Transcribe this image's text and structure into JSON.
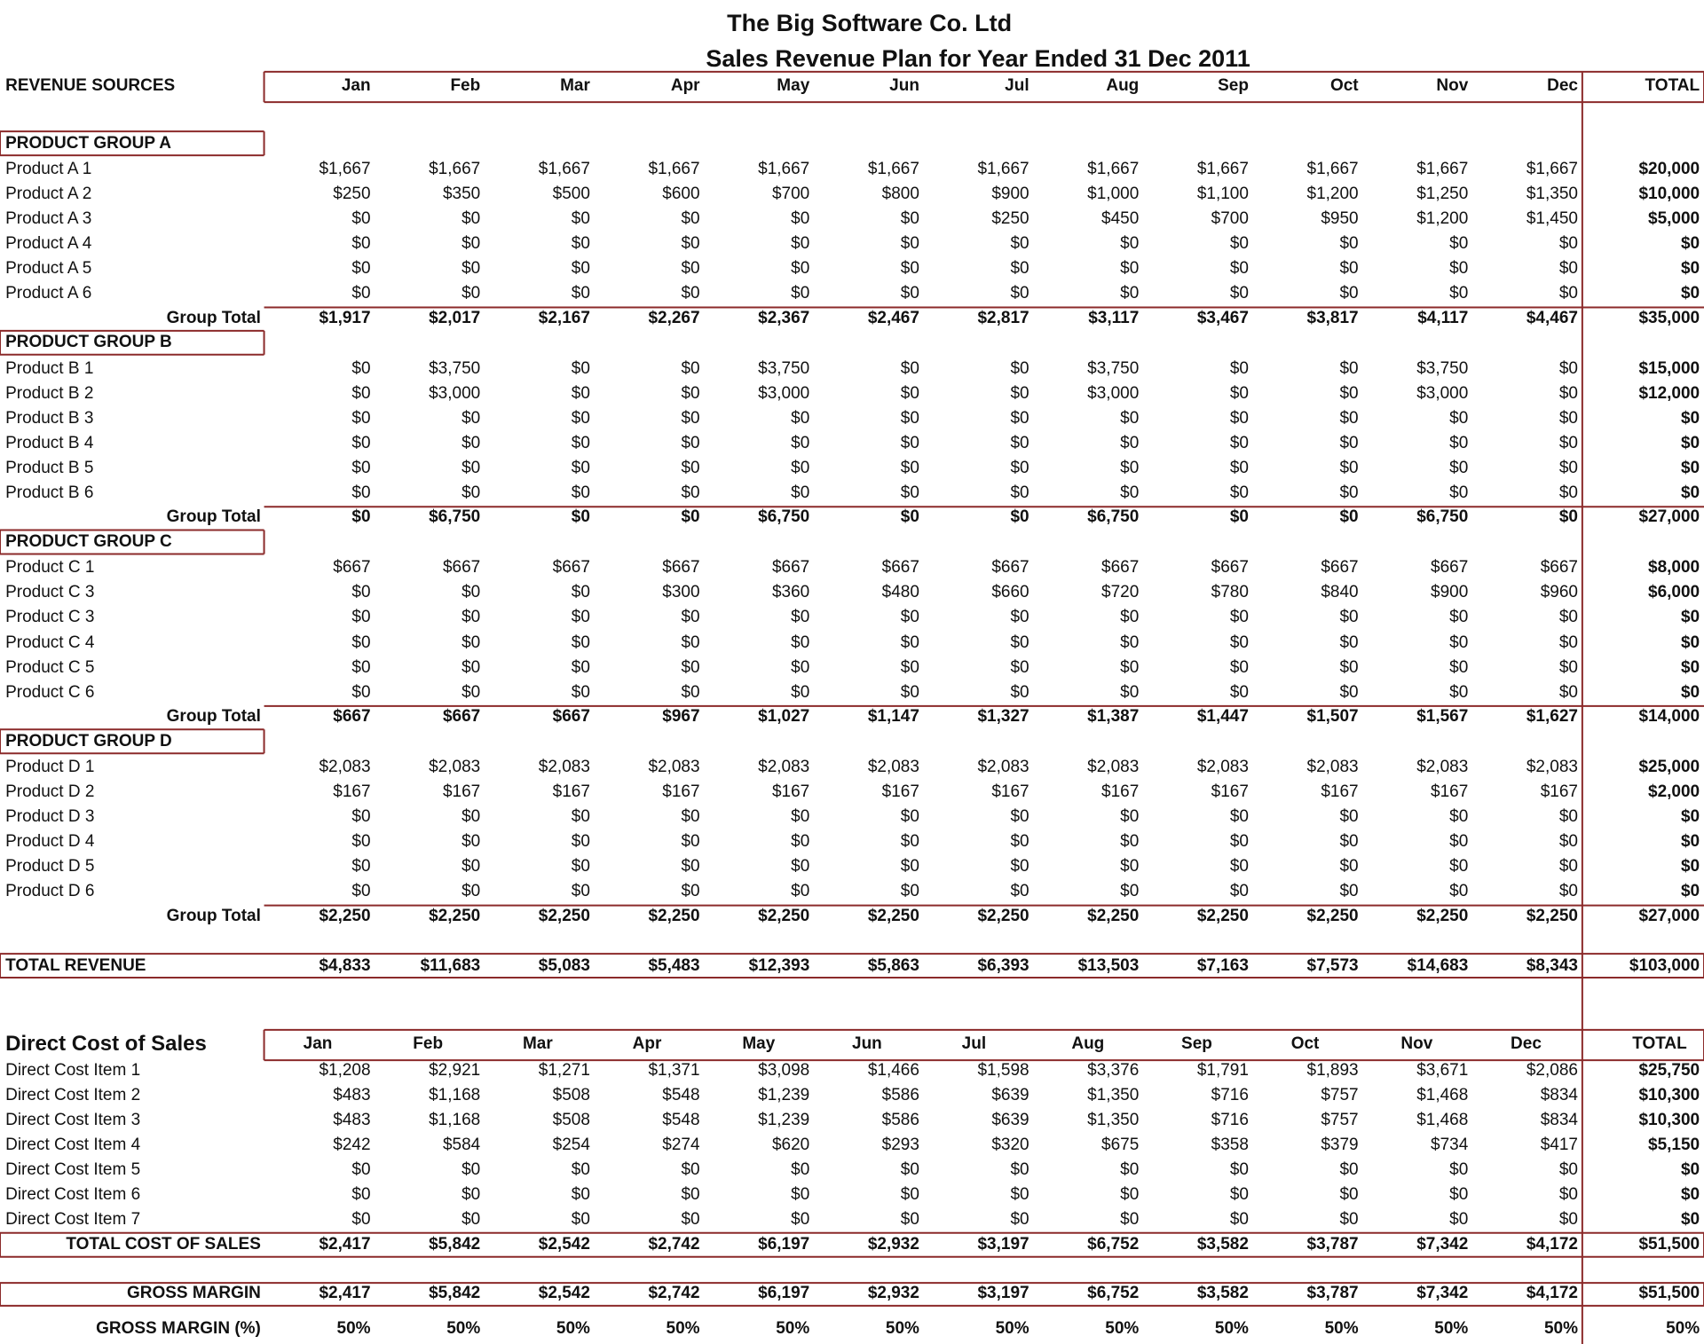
{
  "title": "The Big Software Co. Ltd",
  "subtitle": "Sales Revenue Plan for Year Ended 31 Dec 2011",
  "revenue": {
    "header": [
      "REVENUE SOURCES",
      "Jan",
      "Feb",
      "Mar",
      "Apr",
      "May",
      "Jun",
      "Jul",
      "Aug",
      "Sep",
      "Oct",
      "Nov",
      "Dec",
      "TOTAL"
    ],
    "groups": [
      {
        "name": "PRODUCT GROUP A",
        "rows": [
          [
            "Product A 1",
            "$1,667",
            "$1,667",
            "$1,667",
            "$1,667",
            "$1,667",
            "$1,667",
            "$1,667",
            "$1,667",
            "$1,667",
            "$1,667",
            "$1,667",
            "$1,667",
            "$20,000"
          ],
          [
            "Product A 2",
            "$250",
            "$350",
            "$500",
            "$600",
            "$700",
            "$800",
            "$900",
            "$1,000",
            "$1,100",
            "$1,200",
            "$1,250",
            "$1,350",
            "$10,000"
          ],
          [
            "Product A 3",
            "$0",
            "$0",
            "$0",
            "$0",
            "$0",
            "$0",
            "$250",
            "$450",
            "$700",
            "$950",
            "$1,200",
            "$1,450",
            "$5,000"
          ],
          [
            "Product A 4",
            "$0",
            "$0",
            "$0",
            "$0",
            "$0",
            "$0",
            "$0",
            "$0",
            "$0",
            "$0",
            "$0",
            "$0",
            "$0"
          ],
          [
            "Product A 5",
            "$0",
            "$0",
            "$0",
            "$0",
            "$0",
            "$0",
            "$0",
            "$0",
            "$0",
            "$0",
            "$0",
            "$0",
            "$0"
          ],
          [
            "Product A 6",
            "$0",
            "$0",
            "$0",
            "$0",
            "$0",
            "$0",
            "$0",
            "$0",
            "$0",
            "$0",
            "$0",
            "$0",
            "$0"
          ]
        ],
        "total": [
          "Group Total",
          "$1,917",
          "$2,017",
          "$2,167",
          "$2,267",
          "$2,367",
          "$2,467",
          "$2,817",
          "$3,117",
          "$3,467",
          "$3,817",
          "$4,117",
          "$4,467",
          "$35,000"
        ]
      },
      {
        "name": "PRODUCT GROUP B",
        "rows": [
          [
            "Product B 1",
            "$0",
            "$3,750",
            "$0",
            "$0",
            "$3,750",
            "$0",
            "$0",
            "$3,750",
            "$0",
            "$0",
            "$3,750",
            "$0",
            "$15,000"
          ],
          [
            "Product B 2",
            "$0",
            "$3,000",
            "$0",
            "$0",
            "$3,000",
            "$0",
            "$0",
            "$3,000",
            "$0",
            "$0",
            "$3,000",
            "$0",
            "$12,000"
          ],
          [
            "Product B 3",
            "$0",
            "$0",
            "$0",
            "$0",
            "$0",
            "$0",
            "$0",
            "$0",
            "$0",
            "$0",
            "$0",
            "$0",
            "$0"
          ],
          [
            "Product B 4",
            "$0",
            "$0",
            "$0",
            "$0",
            "$0",
            "$0",
            "$0",
            "$0",
            "$0",
            "$0",
            "$0",
            "$0",
            "$0"
          ],
          [
            "Product B 5",
            "$0",
            "$0",
            "$0",
            "$0",
            "$0",
            "$0",
            "$0",
            "$0",
            "$0",
            "$0",
            "$0",
            "$0",
            "$0"
          ],
          [
            "Product B 6",
            "$0",
            "$0",
            "$0",
            "$0",
            "$0",
            "$0",
            "$0",
            "$0",
            "$0",
            "$0",
            "$0",
            "$0",
            "$0"
          ]
        ],
        "total": [
          "Group Total",
          "$0",
          "$6,750",
          "$0",
          "$0",
          "$6,750",
          "$0",
          "$0",
          "$6,750",
          "$0",
          "$0",
          "$6,750",
          "$0",
          "$27,000"
        ]
      },
      {
        "name": "PRODUCT GROUP C",
        "rows": [
          [
            "Product C 1",
            "$667",
            "$667",
            "$667",
            "$667",
            "$667",
            "$667",
            "$667",
            "$667",
            "$667",
            "$667",
            "$667",
            "$667",
            "$8,000"
          ],
          [
            "Product C 3",
            "$0",
            "$0",
            "$0",
            "$300",
            "$360",
            "$480",
            "$660",
            "$720",
            "$780",
            "$840",
            "$900",
            "$960",
            "$6,000"
          ],
          [
            "Product C 3",
            "$0",
            "$0",
            "$0",
            "$0",
            "$0",
            "$0",
            "$0",
            "$0",
            "$0",
            "$0",
            "$0",
            "$0",
            "$0"
          ],
          [
            "Product C 4",
            "$0",
            "$0",
            "$0",
            "$0",
            "$0",
            "$0",
            "$0",
            "$0",
            "$0",
            "$0",
            "$0",
            "$0",
            "$0"
          ],
          [
            "Product C 5",
            "$0",
            "$0",
            "$0",
            "$0",
            "$0",
            "$0",
            "$0",
            "$0",
            "$0",
            "$0",
            "$0",
            "$0",
            "$0"
          ],
          [
            "Product C 6",
            "$0",
            "$0",
            "$0",
            "$0",
            "$0",
            "$0",
            "$0",
            "$0",
            "$0",
            "$0",
            "$0",
            "$0",
            "$0"
          ]
        ],
        "total": [
          "Group Total",
          "$667",
          "$667",
          "$667",
          "$967",
          "$1,027",
          "$1,147",
          "$1,327",
          "$1,387",
          "$1,447",
          "$1,507",
          "$1,567",
          "$1,627",
          "$14,000"
        ]
      },
      {
        "name": "PRODUCT GROUP D",
        "rows": [
          [
            "Product D 1",
            "$2,083",
            "$2,083",
            "$2,083",
            "$2,083",
            "$2,083",
            "$2,083",
            "$2,083",
            "$2,083",
            "$2,083",
            "$2,083",
            "$2,083",
            "$2,083",
            "$25,000"
          ],
          [
            "Product D 2",
            "$167",
            "$167",
            "$167",
            "$167",
            "$167",
            "$167",
            "$167",
            "$167",
            "$167",
            "$167",
            "$167",
            "$167",
            "$2,000"
          ],
          [
            "Product D 3",
            "$0",
            "$0",
            "$0",
            "$0",
            "$0",
            "$0",
            "$0",
            "$0",
            "$0",
            "$0",
            "$0",
            "$0",
            "$0"
          ],
          [
            "Product D 4",
            "$0",
            "$0",
            "$0",
            "$0",
            "$0",
            "$0",
            "$0",
            "$0",
            "$0",
            "$0",
            "$0",
            "$0",
            "$0"
          ],
          [
            "Product D 5",
            "$0",
            "$0",
            "$0",
            "$0",
            "$0",
            "$0",
            "$0",
            "$0",
            "$0",
            "$0",
            "$0",
            "$0",
            "$0"
          ],
          [
            "Product D 6",
            "$0",
            "$0",
            "$0",
            "$0",
            "$0",
            "$0",
            "$0",
            "$0",
            "$0",
            "$0",
            "$0",
            "$0",
            "$0"
          ]
        ],
        "total": [
          "Group Total",
          "$2,250",
          "$2,250",
          "$2,250",
          "$2,250",
          "$2,250",
          "$2,250",
          "$2,250",
          "$2,250",
          "$2,250",
          "$2,250",
          "$2,250",
          "$2,250",
          "$27,000"
        ]
      }
    ],
    "total": [
      "TOTAL REVENUE",
      "$4,833",
      "$11,683",
      "$5,083",
      "$5,483",
      "$12,393",
      "$5,863",
      "$6,393",
      "$13,503",
      "$7,163",
      "$7,573",
      "$14,683",
      "$8,343",
      "$103,000"
    ]
  },
  "costs": {
    "header": [
      "Direct Cost of Sales",
      "Jan",
      "Feb",
      "Mar",
      "Apr",
      "May",
      "Jun",
      "Jul",
      "Aug",
      "Sep",
      "Oct",
      "Nov",
      "Dec",
      "TOTAL"
    ],
    "rows": [
      [
        "Direct Cost Item 1",
        "$1,208",
        "$2,921",
        "$1,271",
        "$1,371",
        "$3,098",
        "$1,466",
        "$1,598",
        "$3,376",
        "$1,791",
        "$1,893",
        "$3,671",
        "$2,086",
        "$25,750"
      ],
      [
        "Direct Cost Item 2",
        "$483",
        "$1,168",
        "$508",
        "$548",
        "$1,239",
        "$586",
        "$639",
        "$1,350",
        "$716",
        "$757",
        "$1,468",
        "$834",
        "$10,300"
      ],
      [
        "Direct Cost Item 3",
        "$483",
        "$1,168",
        "$508",
        "$548",
        "$1,239",
        "$586",
        "$639",
        "$1,350",
        "$716",
        "$757",
        "$1,468",
        "$834",
        "$10,300"
      ],
      [
        "Direct Cost Item 4",
        "$242",
        "$584",
        "$254",
        "$274",
        "$620",
        "$293",
        "$320",
        "$675",
        "$358",
        "$379",
        "$734",
        "$417",
        "$5,150"
      ],
      [
        "Direct Cost Item 5",
        "$0",
        "$0",
        "$0",
        "$0",
        "$0",
        "$0",
        "$0",
        "$0",
        "$0",
        "$0",
        "$0",
        "$0",
        "$0"
      ],
      [
        "Direct Cost Item 6",
        "$0",
        "$0",
        "$0",
        "$0",
        "$0",
        "$0",
        "$0",
        "$0",
        "$0",
        "$0",
        "$0",
        "$0",
        "$0"
      ],
      [
        "Direct Cost Item 7",
        "$0",
        "$0",
        "$0",
        "$0",
        "$0",
        "$0",
        "$0",
        "$0",
        "$0",
        "$0",
        "$0",
        "$0",
        "$0"
      ]
    ],
    "total": [
      "TOTAL COST OF SALES",
      "$2,417",
      "$5,842",
      "$2,542",
      "$2,742",
      "$6,197",
      "$2,932",
      "$3,197",
      "$6,752",
      "$3,582",
      "$3,787",
      "$7,342",
      "$4,172",
      "$51,500"
    ]
  },
  "margin": [
    "GROSS MARGIN",
    "$2,417",
    "$5,842",
    "$2,542",
    "$2,742",
    "$6,197",
    "$2,932",
    "$3,197",
    "$6,752",
    "$3,582",
    "$3,787",
    "$7,342",
    "$4,172",
    "$51,500"
  ],
  "margin_pct": [
    "GROSS MARGIN (%)",
    "50%",
    "50%",
    "50%",
    "50%",
    "50%",
    "50%",
    "50%",
    "50%",
    "50%",
    "50%",
    "50%",
    "50%",
    "50%"
  ]
}
